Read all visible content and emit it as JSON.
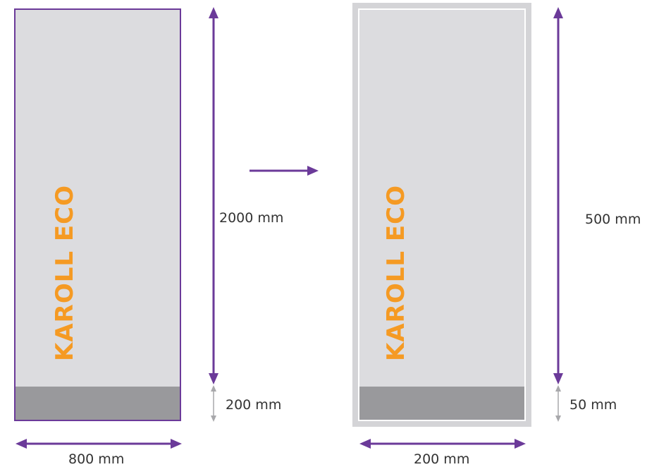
{
  "left_panel": {
    "brand_text": "KAROLL ECO",
    "height_label": "2000 mm",
    "base_height_label": "200 mm",
    "width_label": "800 mm"
  },
  "right_panel": {
    "brand_text": "KAROLL ECO",
    "height_label": "500 mm",
    "base_height_label": "50 mm",
    "width_label": "200 mm"
  },
  "colors": {
    "accent_purple": "#6b3a99",
    "brand_orange": "#f59a23",
    "panel_fill": "#dcdcdf",
    "base_fill": "#99999c",
    "frame_gray": "#d4d4d7",
    "small_arrow_gray": "#a8a8ab"
  },
  "icons": [
    "arrow-right-icon",
    "double-arrow-vertical-icon",
    "double-arrow-horizontal-icon"
  ]
}
